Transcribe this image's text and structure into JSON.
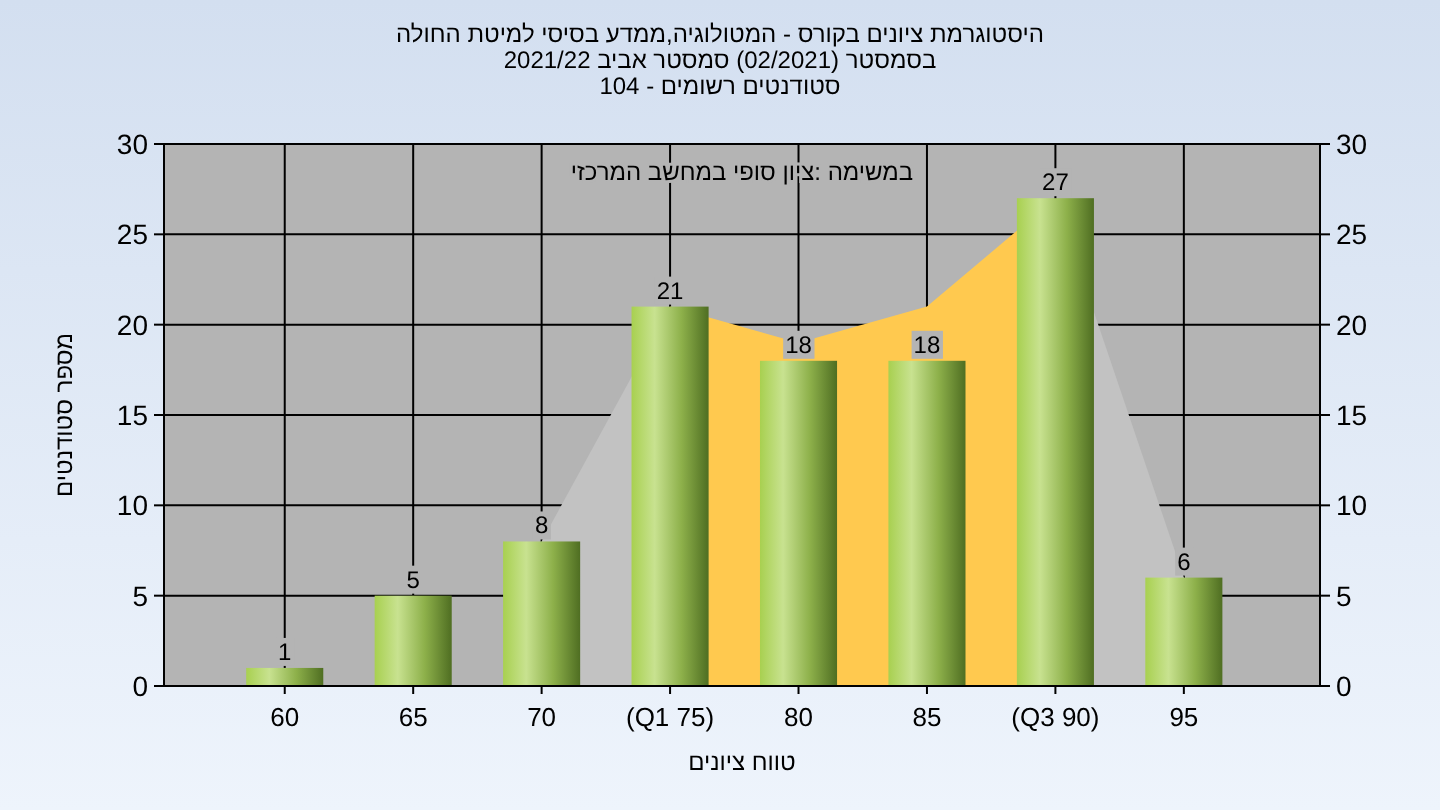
{
  "chart_data": {
    "type": "bar",
    "title": "היסטוגרמת ציונים בקורס - המטולוגיה,ממדע בסיסי למיטת החולה",
    "subtitle": "בסמסטר (02/2021) סמסטר אביב 2021/22\nסטודנטים רשומים - 104",
    "xlabel": "טווח ציונים",
    "ylabel": "מספר סטודנטים",
    "annotations": [
      "במשימה :ציון סופי במחשב המרכזי"
    ],
    "categories": [
      "60",
      "65",
      "70",
      "(Q1 75)",
      "80",
      "85",
      "(Q3 90)",
      "95"
    ],
    "series": [
      {
        "type": "area",
        "color": "#c2c2c2",
        "values": [
          null,
          null,
          8,
          21,
          null,
          null,
          27,
          6
        ]
      },
      {
        "type": "area",
        "color": "#ffc94f",
        "values": [
          null,
          null,
          null,
          21,
          19,
          21,
          27,
          null
        ]
      },
      {
        "color": "#8db04a",
        "values": [
          1,
          5,
          8,
          21,
          18,
          18,
          27,
          6
        ],
        "value_labels": [
          "1",
          "5",
          "8",
          "21",
          "18",
          "18",
          "27",
          "6"
        ]
      }
    ],
    "ylim": [
      0,
      30
    ],
    "yticks": [
      0,
      5,
      10,
      15,
      20,
      25,
      30
    ],
    "y2lim": [
      0,
      30
    ],
    "y2ticks": [
      0,
      5,
      10,
      15,
      20,
      25,
      30
    ],
    "grid": true
  }
}
